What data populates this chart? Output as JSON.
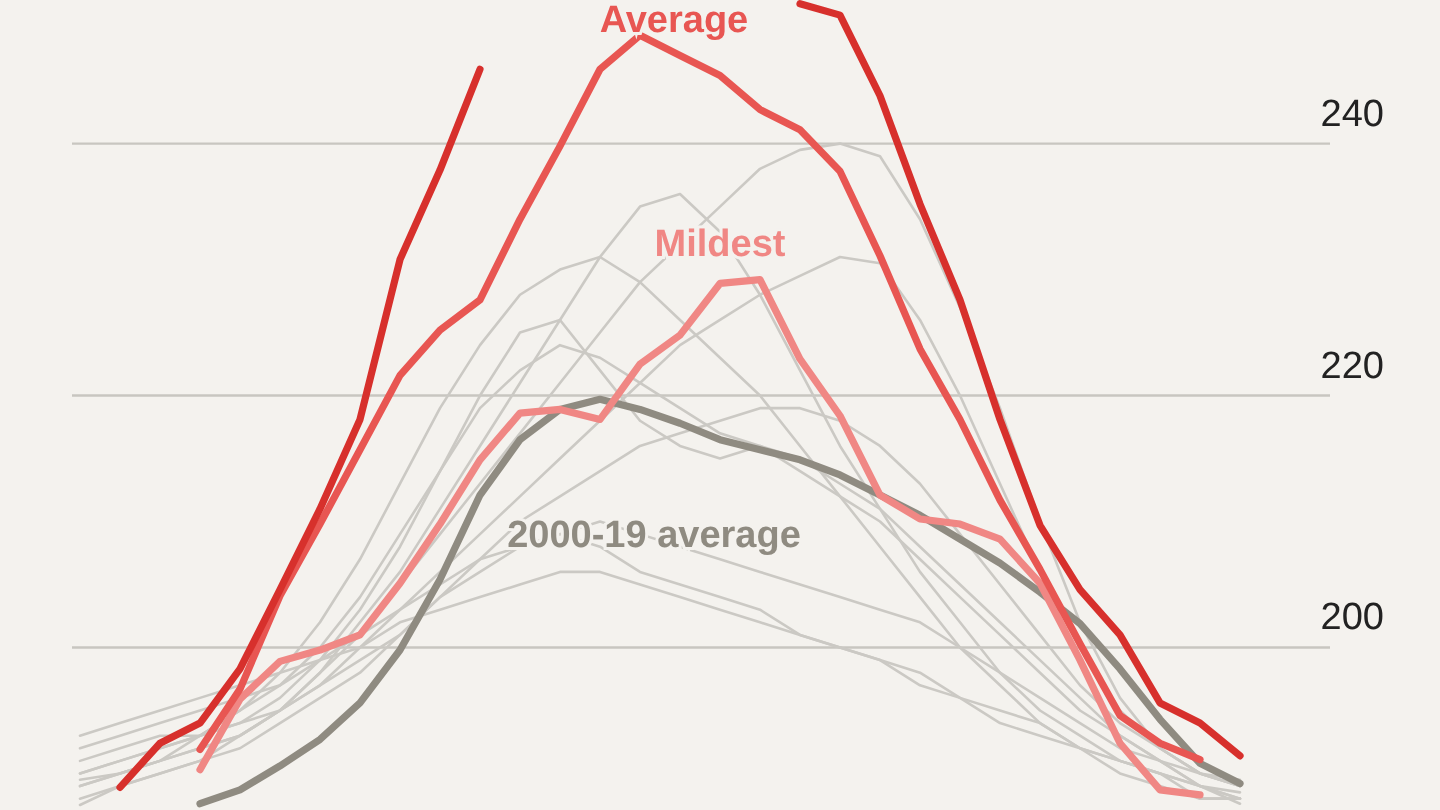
{
  "chart_data": {
    "type": "line",
    "categories": [
      null,
      null,
      null,
      null,
      null,
      null,
      null,
      null,
      null,
      null,
      null,
      null,
      null,
      null,
      null,
      null,
      null,
      null,
      null,
      null,
      null,
      null,
      null,
      null,
      null,
      null,
      null,
      null,
      null,
      null
    ],
    "ylim": [
      187.1,
      251.4
    ],
    "yticks": [
      200,
      220,
      240
    ],
    "grid": "y",
    "tick_labels": "y",
    "series": [
      {
        "color": "#cbc9c4",
        "values": [
          188,
          189,
          190,
          191,
          193,
          195,
          198,
          201,
          205,
          209,
          213,
          217,
          221,
          225,
          229,
          232,
          235,
          238,
          239.5,
          240,
          239,
          234,
          227,
          219,
          210,
          202,
          196,
          192,
          190,
          189
        ]
      },
      {
        "color": "#cbc9c4",
        "values": [
          189,
          190,
          191,
          192,
          193,
          195,
          197,
          200,
          203,
          206,
          209,
          212,
          215,
          218,
          221,
          224,
          226,
          228,
          229.5,
          231,
          230.5,
          226,
          220,
          213,
          206,
          200,
          195,
          192,
          190,
          189
        ]
      },
      {
        "color": "#cbc9c4",
        "values": [
          190,
          191,
          192,
          193,
          195,
          198,
          202,
          207,
          213,
          219,
          224,
          228,
          230,
          231,
          229,
          226,
          223,
          220,
          216,
          212,
          208,
          204,
          200,
          197,
          194,
          192,
          190,
          189,
          188,
          188
        ]
      },
      {
        "color": "#cbc9c4",
        "values": [
          189,
          190,
          191,
          193,
          195,
          197,
          200,
          204,
          209,
          214,
          219,
          222,
          224,
          223,
          221,
          219,
          217,
          216,
          215,
          213,
          211,
          208,
          205,
          202,
          199,
          196,
          193,
          191,
          189,
          188
        ]
      },
      {
        "color": "#cbc9c4",
        "values": [
          191,
          192,
          193,
          193,
          194,
          195,
          197,
          199,
          201,
          204,
          206,
          208,
          209,
          210,
          209,
          208,
          207,
          206,
          205,
          204,
          203,
          202,
          200,
          198,
          196,
          194,
          192,
          191,
          190,
          189
        ]
      },
      {
        "color": "#cbc9c4",
        "values": [
          192,
          193,
          194,
          195,
          196,
          197,
          199,
          201,
          203,
          205,
          207,
          208,
          209,
          208,
          206,
          205,
          204,
          203,
          201,
          200,
          199,
          197,
          196,
          194,
          193,
          192,
          191,
          190,
          189,
          188
        ]
      },
      {
        "color": "#cbc9c4",
        "values": [
          190,
          191,
          192,
          193,
          194,
          196,
          199,
          203,
          208,
          214,
          220,
          225,
          226,
          222,
          218,
          216,
          215,
          216,
          214,
          212,
          210,
          207,
          204,
          201,
          198,
          195,
          193,
          191,
          189,
          188.5
        ]
      },
      {
        "color": "#cbc9c4",
        "values": [
          187.5,
          189,
          190,
          191,
          192,
          194,
          196,
          198,
          201,
          204,
          207,
          210,
          212,
          214,
          216,
          217,
          218,
          219,
          219,
          218,
          216,
          213,
          209,
          205,
          201,
          197,
          194,
          192,
          190,
          189.5
        ]
      },
      {
        "color": "#cbc9c4",
        "values": [
          189.5,
          190,
          191,
          192,
          193,
          195,
          198,
          202,
          206,
          211,
          216,
          221,
          226,
          231,
          235,
          236,
          233,
          228,
          222,
          216,
          211,
          206,
          202,
          198,
          195,
          193,
          191,
          190,
          189,
          187.6
        ]
      },
      {
        "color": "#cbc9c4",
        "values": [
          193,
          194,
          195,
          196,
          197,
          198,
          199,
          200,
          202,
          203,
          204,
          205,
          206,
          206,
          205,
          204,
          203,
          202,
          201,
          200,
          199,
          198,
          196,
          195,
          194,
          192,
          191,
          190,
          188,
          188
        ]
      },
      {
        "name": "2000-19 average",
        "color": "#8f8b81",
        "values": [
          null,
          null,
          null,
          187.6,
          188.7,
          190.6,
          192.7,
          195.6,
          199.8,
          205.4,
          212.1,
          216.5,
          218.9,
          219.7,
          218.9,
          217.8,
          216.5,
          215.7,
          214.9,
          213.7,
          212.1,
          210.5,
          208.6,
          206.7,
          204.4,
          201.9,
          198.3,
          194.3,
          190.8,
          189.2
        ]
      },
      {
        "name": "Mildest",
        "color": "#f08784",
        "values": [
          null,
          null,
          null,
          190.3,
          195.9,
          198.9,
          199.8,
          201.0,
          205.1,
          209.8,
          214.9,
          218.6,
          218.9,
          218.1,
          222.5,
          224.8,
          228.9,
          229.2,
          222.9,
          218.4,
          212.1,
          210.2,
          209.8,
          208.6,
          205.1,
          199.0,
          192.4,
          188.7,
          188.3,
          null
        ]
      },
      {
        "name": "Average",
        "color": "#e85652",
        "values": [
          null,
          null,
          null,
          191.9,
          196.7,
          204.1,
          209.8,
          215.7,
          221.6,
          225.2,
          227.6,
          234.0,
          239.8,
          245.9,
          248.6,
          247.0,
          245.4,
          242.7,
          241.1,
          237.8,
          231.1,
          223.7,
          218.1,
          211.7,
          206.2,
          200.3,
          194.6,
          192.4,
          191.1,
          null
        ]
      },
      {
        "color": "#d7302c",
        "values": [
          null,
          188.9,
          192.4,
          194.0,
          198.3,
          204.6,
          211.0,
          218.1,
          230.8,
          237.9,
          245.9,
          null,
          null,
          null,
          null,
          null,
          null,
          null,
          251.1,
          250.2,
          243.8,
          235.2,
          227.6,
          218.1,
          209.7,
          204.6,
          201.0,
          195.6,
          194.0,
          191.4
        ]
      }
    ]
  }
}
